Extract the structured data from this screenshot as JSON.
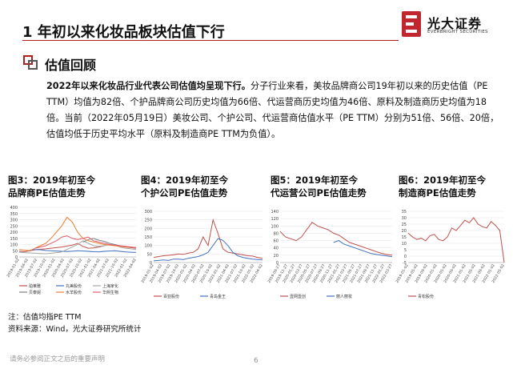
{
  "header": {
    "title": "1 年初以来化妆品板块估值下行",
    "logo_cn": "光大证券",
    "logo_en": "EVERBRIGHT SECURITIES",
    "accent": "#b02020"
  },
  "section": {
    "title": "估值回顾"
  },
  "summary": {
    "lead": "2022年以来化妆品行业代表公司估值均呈现下行。",
    "body": "分子行业来看，美妆品牌商公司19年初以来的历史估值（PE TTM）均值为82倍、个护品牌商公司历史均值为66倍、代运营商历史均值为46倍、原料及制造商历史均值为18倍。当前（2022年05月19日）美妆公司、个护公司、代运营商估值水平（PE TTM）分别为51倍、56倍、20倍，估值均低于历史平均水平（原料及制造商PE TTM为负值）。"
  },
  "panels": [
    {
      "title_line1": "图3：2019年初至今",
      "title_line2": "品牌商PE估值走势"
    },
    {
      "title_line1": "图4：2019年初至今",
      "title_line2": "个护公司PE估值走势"
    },
    {
      "title_line1": "图5：2019年初至今",
      "title_line2": "代运营公司PE估值走势"
    },
    {
      "title_line1": "图6：2019年初至今",
      "title_line2": "制造商PE估值走势"
    }
  ],
  "chart_data": [
    {
      "type": "line",
      "ylim": [
        0,
        400
      ],
      "yticks": [
        0,
        50,
        100,
        150,
        200,
        250,
        300,
        350,
        400
      ],
      "xticks": [
        "2019-01-02",
        "2019-04-02",
        "2019-07-02",
        "2019-10-02",
        "2020-01-02",
        "2020-04-02",
        "2020-07-02",
        "2020-10-02",
        "2021-01-02",
        "2021-04-02",
        "2021-07-02",
        "2021-10-02",
        "2022-01-02",
        "2022-04-02"
      ],
      "series": [
        {
          "name": "珀莱雅",
          "color": "#c0504d",
          "values": [
            45,
            42,
            50,
            58,
            62,
            65,
            70,
            75,
            80,
            88,
            95,
            110,
            85,
            70,
            72,
            80,
            90,
            100,
            95,
            88,
            80,
            75,
            70
          ]
        },
        {
          "name": "丸美股份",
          "color": "#4472c4",
          "values": [
            null,
            null,
            55,
            60,
            58,
            52,
            50,
            48,
            45,
            44,
            46,
            50,
            48,
            45,
            42,
            40,
            45,
            48,
            50,
            45,
            40,
            38,
            36
          ]
        },
        {
          "name": "上海家化",
          "color": "#a5a5a5",
          "values": [
            38,
            35,
            32,
            30,
            28,
            26,
            30,
            35,
            40,
            60,
            80,
            100,
            130,
            110,
            90,
            85,
            90,
            100,
            95,
            80,
            70,
            65,
            60
          ]
        },
        {
          "name": "贝泰妮",
          "color": "#7f7f7f",
          "values": [
            null,
            null,
            null,
            null,
            null,
            null,
            null,
            null,
            null,
            null,
            null,
            null,
            120,
            140,
            150,
            135,
            125,
            110,
            100,
            90,
            85,
            80,
            75
          ]
        },
        {
          "name": "水羊股份",
          "color": "#ed7d31",
          "values": [
            60,
            55,
            50,
            70,
            90,
            110,
            150,
            200,
            250,
            320,
            280,
            200,
            150,
            130,
            120,
            110,
            100,
            95,
            90,
            85,
            80,
            78,
            75
          ]
        },
        {
          "name": "华熙生物",
          "color": "#e06070",
          "values": [
            null,
            null,
            null,
            70,
            80,
            90,
            110,
            130,
            160,
            170,
            150,
            140,
            150,
            160,
            130,
            120,
            110,
            100,
            95,
            90,
            85,
            80,
            75
          ]
        }
      ],
      "legend": [
        "珀莱雅",
        "丸美股份",
        "上海家化",
        "贝泰妮",
        "水羊股份",
        "华熙生物"
      ]
    },
    {
      "type": "line",
      "ylim": [
        0,
        300
      ],
      "yticks": [
        0,
        50,
        100,
        150,
        200,
        250,
        300
      ],
      "xticks": [
        "2019-01-02",
        "2019-04-02",
        "2019-07-02",
        "2019-10-02",
        "2020-01-02",
        "2020-04-02",
        "2020-07-02",
        "2020-10-02",
        "2021-01-02",
        "2021-04-02",
        "2021-07-02",
        "2021-10-02",
        "2022-01-02",
        "2022-04-02"
      ],
      "series": [
        {
          "name": "百亚股份",
          "color": "#c0504d",
          "values": [
            30,
            35,
            40,
            42,
            45,
            50,
            48,
            55,
            60,
            80,
            150,
            100,
            250,
            170,
            80,
            60,
            55,
            50,
            45,
            40,
            38,
            30,
            25
          ]
        },
        {
          "name": "青岛金王",
          "color": "#4472c4",
          "values": [
            10,
            12,
            15,
            12,
            20,
            20,
            18,
            25,
            30,
            35,
            45,
            60,
            100,
            140,
            130,
            100,
            60,
            40,
            30,
            25,
            20,
            18,
            15
          ]
        }
      ],
      "legend": [
        "百亚股份",
        "青岛金王"
      ]
    },
    {
      "type": "line",
      "ylim": [
        0,
        140
      ],
      "yticks": [
        0,
        20,
        40,
        60,
        80,
        100,
        120,
        140
      ],
      "xticks": [
        "2019-09-27",
        "2019-11-27",
        "2020-01-27",
        "2020-03-27",
        "2020-05-27",
        "2020-07-27",
        "2020-09-27",
        "2020-11-27",
        "2021-01-27",
        "2021-03-27",
        "2021-05-27",
        "2021-07-27",
        "2021-09-27",
        "2021-11-27",
        "2022-01-27",
        "2022-03-27"
      ],
      "series": [
        {
          "name": "壹网壹创",
          "color": "#c0504d",
          "values": [
            85,
            70,
            65,
            60,
            70,
            90,
            110,
            100,
            95,
            90,
            80,
            75,
            65,
            55,
            50,
            45,
            40,
            35,
            30,
            25,
            22,
            20
          ]
        },
        {
          "name": "丽人丽妆",
          "color": "#4472c4",
          "values": [
            null,
            null,
            null,
            null,
            null,
            null,
            null,
            null,
            null,
            null,
            55,
            60,
            50,
            45,
            40,
            35,
            30,
            25,
            22,
            20,
            18,
            16
          ]
        }
      ],
      "legend": [
        "壹网壹创",
        "丽人丽妆"
      ]
    },
    {
      "type": "line",
      "ylim": [
        -5,
        35
      ],
      "yticks": [
        -5,
        0,
        5,
        10,
        15,
        20,
        25,
        30,
        35
      ],
      "xticks": [
        "2019-01-02",
        "2019-05-02",
        "2019-09-02",
        "2020-01-02",
        "2020-05-02",
        "2020-09-02",
        "2021-01-02",
        "2021-05-02",
        "2021-09-02",
        "2022-01-02",
        "2022-05-02"
      ],
      "series": [
        {
          "name": "青松股份",
          "color": "#c0504d",
          "values": [
            18,
            15,
            13,
            14,
            12,
            16,
            17,
            13,
            12,
            15,
            22,
            20,
            24,
            28,
            26,
            30,
            25,
            23,
            22,
            27,
            24,
            20,
            -5
          ]
        }
      ],
      "legend": [
        "青松股份"
      ]
    }
  ],
  "notes": {
    "line1": "注：估值均指PE TTM",
    "line2": "资料来源：Wind，光大证券研究所统计"
  },
  "footer": {
    "disclaimer": "请务必参阅正文之后的重要声明",
    "page": "6"
  }
}
